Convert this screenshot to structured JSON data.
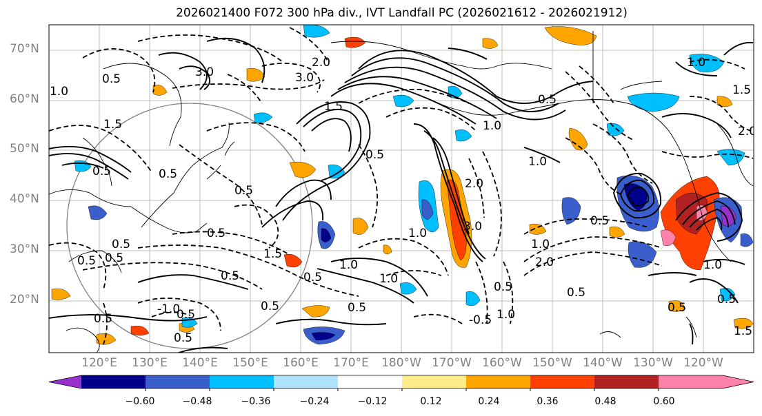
{
  "title": "2026021400 F072 300 hPa div., IVT Landfall PC (2026021612 - 2026021912)",
  "map": {
    "lat_labels": [
      "70°N",
      "60°N",
      "50°N",
      "40°N",
      "30°N",
      "20°N"
    ],
    "lon_labels": [
      "120°E",
      "130°E",
      "140°E",
      "150°E",
      "160°E",
      "170°E",
      "180°W",
      "170°W",
      "160°W",
      "150°W",
      "140°W",
      "130°W",
      "120°W"
    ],
    "contour_labels": [
      "0.5",
      "1.0",
      "1.5",
      "2.0",
      "3.0",
      "-1.0",
      "-0.5"
    ]
  },
  "colorbar": {
    "ticks": [
      "−0.60",
      "−0.48",
      "−0.36",
      "−0.24",
      "−0.12",
      "0.12",
      "0.24",
      "0.36",
      "0.48",
      "0.60"
    ],
    "colors": [
      "#9932cc",
      "#00008b",
      "#3a5fcd",
      "#00bfff",
      "#b0e2ff",
      "#ffffff",
      "#ffec8b",
      "#ffa500",
      "#ff4000",
      "#b22222",
      "#ff82ab",
      "#ff82ab"
    ]
  }
}
